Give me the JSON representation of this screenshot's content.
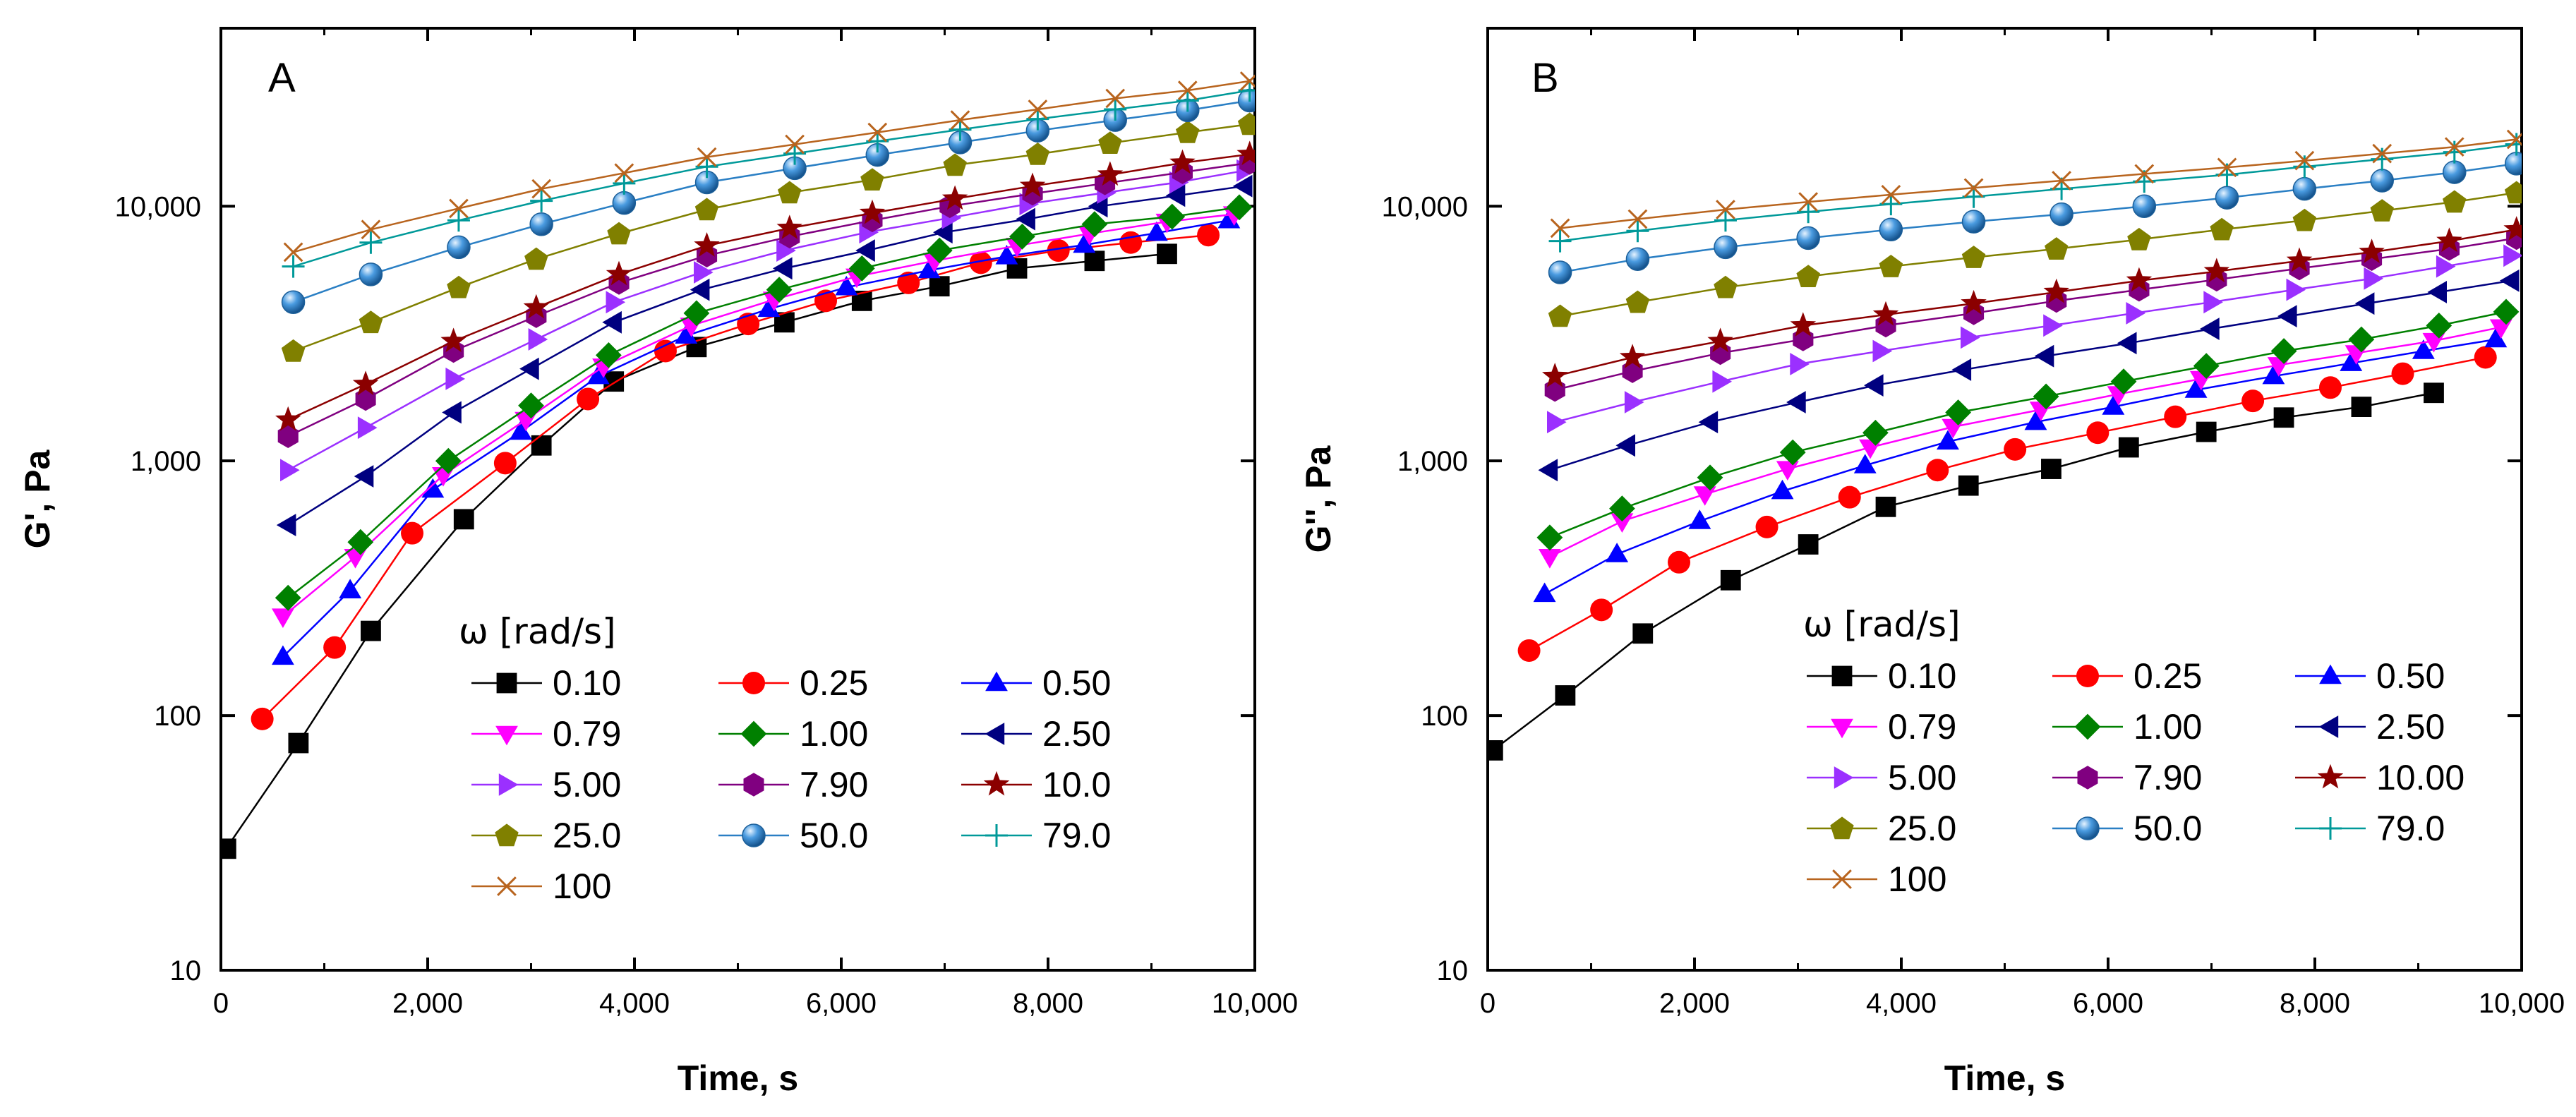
{
  "chart_data": [
    {
      "type": "line",
      "panel_label": "A",
      "xlabel": "Time, s",
      "ylabel": "G', Pa",
      "yscale": "log",
      "xlim": [
        0,
        10000
      ],
      "ylim": [
        10,
        50000
      ],
      "x_ticks": [
        0,
        2000,
        4000,
        6000,
        8000,
        10000
      ],
      "x_tick_labels": [
        "0",
        "2,000",
        "4,000",
        "6,000",
        "8,000",
        "10,000"
      ],
      "y_ticks": [
        10,
        100,
        1000,
        10000
      ],
      "y_tick_labels": [
        "10",
        "100",
        "1,000",
        "10,000"
      ],
      "legend_title": "ω [rad/s]",
      "legend_placement": "center-right",
      "grid": false,
      "series": [
        {
          "name": "0.10",
          "color": "#000000",
          "marker": "square",
          "x": [
            50,
            750,
            1450,
            2350,
            3100,
            3800,
            4600,
            5450,
            6200,
            6950,
            7700,
            8450,
            9150
          ],
          "values": [
            30,
            78,
            215,
            590,
            1150,
            2050,
            2800,
            3500,
            4250,
            4850,
            5700,
            6100,
            6500
          ]
        },
        {
          "name": "0.25",
          "color": "#ff0000",
          "marker": "circle",
          "x": [
            400,
            1100,
            1850,
            2750,
            3550,
            4300,
            5100,
            5850,
            6650,
            7350,
            8100,
            8800,
            9550
          ],
          "values": [
            97,
            185,
            520,
            980,
            1750,
            2700,
            3450,
            4250,
            5000,
            6000,
            6700,
            7200,
            7700
          ]
        },
        {
          "name": "0.50",
          "color": "#0000ff",
          "marker": "triangle-up",
          "x": [
            600,
            1250,
            2050,
            2900,
            3650,
            4500,
            5300,
            6050,
            6850,
            7600,
            8350,
            9050,
            9750
          ],
          "values": [
            170,
            310,
            770,
            1300,
            2150,
            3100,
            3950,
            4800,
            5600,
            6350,
            7050,
            7850,
            8800
          ]
        },
        {
          "name": "0.79",
          "color": "#ff00ff",
          "marker": "triangle-down",
          "x": [
            600,
            1300,
            2150,
            2950,
            3700,
            4550,
            5350,
            6150,
            6900,
            7700,
            8400,
            9150,
            9800
          ],
          "values": [
            245,
            420,
            880,
            1450,
            2350,
            3400,
            4300,
            5300,
            6100,
            7000,
            7800,
            8700,
            9300
          ]
        },
        {
          "name": "1.00",
          "color": "#008000",
          "marker": "diamond",
          "x": [
            650,
            1350,
            2200,
            3000,
            3750,
            4600,
            5400,
            6200,
            6950,
            7750,
            8450,
            9200,
            9850
          ],
          "values": [
            290,
            480,
            1000,
            1650,
            2600,
            3800,
            4700,
            5700,
            6700,
            7600,
            8500,
            9100,
            9900
          ]
        },
        {
          "name": "2.50",
          "color": "#000080",
          "marker": "triangle-left",
          "x": [
            650,
            1400,
            2250,
            3000,
            3800,
            4650,
            5450,
            6250,
            7000,
            7800,
            8500,
            9250,
            9900
          ],
          "values": [
            560,
            870,
            1550,
            2300,
            3500,
            4700,
            5700,
            6700,
            7900,
            8900,
            10000,
            11000,
            12000
          ]
        },
        {
          "name": "5.00",
          "color": "#9b30ff",
          "marker": "triangle-right",
          "x": [
            650,
            1400,
            2250,
            3050,
            3800,
            4650,
            5450,
            6250,
            7050,
            7800,
            8550,
            9250,
            9900
          ],
          "values": [
            920,
            1350,
            2100,
            3000,
            4200,
            5500,
            6700,
            7900,
            9000,
            10200,
            11300,
            12400,
            13800
          ]
        },
        {
          "name": "7.90",
          "color": "#800080",
          "marker": "hexagon",
          "x": [
            650,
            1400,
            2250,
            3050,
            3850,
            4700,
            5500,
            6300,
            7050,
            7850,
            8550,
            9300,
            9950
          ],
          "values": [
            1250,
            1750,
            2700,
            3700,
            5000,
            6400,
            7600,
            8800,
            10000,
            11200,
            12300,
            13600,
            14800
          ]
        },
        {
          "name": "10.0",
          "color": "#8b0000",
          "marker": "star",
          "x": [
            650,
            1400,
            2250,
            3050,
            3850,
            4700,
            5500,
            6300,
            7100,
            7850,
            8600,
            9300,
            9950
          ],
          "values": [
            1450,
            2000,
            2950,
            4000,
            5400,
            7000,
            8200,
            9400,
            10700,
            12000,
            13300,
            14800,
            16000
          ]
        },
        {
          "name": "25.0",
          "color": "#808000",
          "marker": "pentagon",
          "x": [
            700,
            1450,
            2300,
            3050,
            3850,
            4700,
            5500,
            6300,
            7100,
            7900,
            8600,
            9350,
            9950
          ],
          "values": [
            2700,
            3500,
            4800,
            6200,
            7800,
            9700,
            11300,
            12700,
            14500,
            16000,
            17700,
            19500,
            21000
          ]
        },
        {
          "name": "50.0",
          "color": "#2a7fc4",
          "marker": "sphere",
          "x": [
            700,
            1450,
            2300,
            3100,
            3900,
            4700,
            5550,
            6350,
            7150,
            7900,
            8650,
            9350,
            9950
          ],
          "values": [
            4200,
            5400,
            6900,
            8500,
            10300,
            12400,
            14100,
            15900,
            17800,
            19800,
            21800,
            23800,
            26000
          ]
        },
        {
          "name": "79.0",
          "color": "#009999",
          "marker": "plus",
          "x": [
            700,
            1450,
            2300,
            3100,
            3900,
            4700,
            5550,
            6350,
            7150,
            7900,
            8650,
            9350,
            9950
          ],
          "values": [
            5800,
            7200,
            8800,
            10500,
            12300,
            14300,
            16100,
            18000,
            20000,
            22000,
            24000,
            26000,
            28500
          ]
        },
        {
          "name": "100",
          "color": "#b8641e",
          "marker": "cross",
          "x": [
            700,
            1450,
            2300,
            3100,
            3900,
            4700,
            5550,
            6350,
            7150,
            7900,
            8650,
            9350,
            9950
          ],
          "values": [
            6600,
            8100,
            9800,
            11700,
            13500,
            15600,
            17500,
            19500,
            21800,
            24000,
            26500,
            28500,
            31000
          ]
        }
      ]
    },
    {
      "type": "line",
      "panel_label": "B",
      "xlabel": "Time, s",
      "ylabel": "G'', Pa",
      "yscale": "log",
      "xlim": [
        0,
        10000
      ],
      "ylim": [
        10,
        50000
      ],
      "x_ticks": [
        0,
        2000,
        4000,
        6000,
        8000,
        10000
      ],
      "x_tick_labels": [
        "0",
        "2,000",
        "4,000",
        "6,000",
        "8,000",
        "10,000"
      ],
      "y_ticks": [
        10,
        100,
        1000,
        10000
      ],
      "y_tick_labels": [
        "10",
        "100",
        "1,000",
        "10,000"
      ],
      "legend_title": "ω [rad/s]",
      "legend_placement": "center-right",
      "grid": false,
      "series": [
        {
          "name": "0.10",
          "color": "#000000",
          "marker": "square",
          "x": [
            50,
            750,
            1500,
            2350,
            3100,
            3850,
            4650,
            5450,
            6200,
            6950,
            7700,
            8450,
            9150
          ],
          "values": [
            73,
            120,
            210,
            340,
            470,
            660,
            800,
            930,
            1130,
            1300,
            1480,
            1630,
            1850
          ]
        },
        {
          "name": "0.25",
          "color": "#ff0000",
          "marker": "circle",
          "x": [
            400,
            1100,
            1850,
            2700,
            3500,
            4350,
            5100,
            5900,
            6650,
            7400,
            8150,
            8850,
            9650
          ],
          "values": [
            180,
            260,
            400,
            550,
            720,
            920,
            1110,
            1290,
            1490,
            1720,
            1940,
            2200,
            2550
          ]
        },
        {
          "name": "0.50",
          "color": "#0000ff",
          "marker": "triangle-up",
          "x": [
            550,
            1250,
            2050,
            2850,
            3650,
            4450,
            5300,
            6050,
            6850,
            7600,
            8350,
            9050,
            9750
          ],
          "values": [
            300,
            430,
            580,
            760,
            960,
            1190,
            1420,
            1630,
            1900,
            2150,
            2420,
            2700,
            3000
          ]
        },
        {
          "name": "0.79",
          "color": "#ff00ff",
          "marker": "triangle-down",
          "x": [
            600,
            1300,
            2100,
            2900,
            3700,
            4500,
            5350,
            6100,
            6900,
            7650,
            8400,
            9150,
            9800
          ],
          "values": [
            420,
            580,
            740,
            930,
            1130,
            1360,
            1590,
            1830,
            2100,
            2380,
            2650,
            2960,
            3350
          ]
        },
        {
          "name": "1.00",
          "color": "#008000",
          "marker": "diamond",
          "x": [
            600,
            1300,
            2150,
            2950,
            3750,
            4550,
            5400,
            6150,
            6950,
            7700,
            8450,
            9200,
            9850
          ],
          "values": [
            500,
            650,
            860,
            1080,
            1290,
            1550,
            1790,
            2050,
            2360,
            2700,
            3000,
            3400,
            3850
          ]
        },
        {
          "name": "2.50",
          "color": "#000080",
          "marker": "triangle-left",
          "x": [
            600,
            1350,
            2150,
            3000,
            3750,
            4600,
            5400,
            6200,
            7000,
            7750,
            8500,
            9200,
            9900
          ],
          "values": [
            920,
            1150,
            1420,
            1700,
            1980,
            2280,
            2580,
            2900,
            3300,
            3700,
            4150,
            4600,
            5100
          ]
        },
        {
          "name": "5.00",
          "color": "#9b30ff",
          "marker": "triangle-right",
          "x": [
            650,
            1400,
            2250,
            3000,
            3800,
            4650,
            5450,
            6250,
            7000,
            7800,
            8550,
            9250,
            9900
          ],
          "values": [
            1420,
            1700,
            2050,
            2400,
            2700,
            3050,
            3400,
            3800,
            4200,
            4700,
            5200,
            5800,
            6400
          ]
        },
        {
          "name": "7.90",
          "color": "#800080",
          "marker": "hexagon",
          "x": [
            650,
            1400,
            2250,
            3050,
            3850,
            4700,
            5500,
            6300,
            7050,
            7850,
            8550,
            9300,
            9950
          ],
          "values": [
            1900,
            2250,
            2650,
            3000,
            3400,
            3800,
            4250,
            4700,
            5150,
            5700,
            6200,
            6800,
            7500
          ]
        },
        {
          "name": "10.00",
          "color": "#8b0000",
          "marker": "star",
          "x": [
            650,
            1400,
            2250,
            3050,
            3850,
            4700,
            5500,
            6300,
            7050,
            7850,
            8550,
            9300,
            9950
          ],
          "values": [
            2150,
            2550,
            2950,
            3400,
            3750,
            4150,
            4600,
            5100,
            5550,
            6100,
            6600,
            7300,
            8100
          ]
        },
        {
          "name": "25.0",
          "color": "#808000",
          "marker": "pentagon",
          "x": [
            700,
            1450,
            2300,
            3100,
            3900,
            4700,
            5500,
            6300,
            7100,
            7900,
            8650,
            9350,
            9950
          ],
          "values": [
            3700,
            4200,
            4800,
            5300,
            5800,
            6300,
            6800,
            7400,
            8100,
            8800,
            9600,
            10400,
            11300
          ]
        },
        {
          "name": "50.0",
          "color": "#2a7fc4",
          "marker": "sphere",
          "x": [
            700,
            1450,
            2300,
            3100,
            3900,
            4700,
            5550,
            6350,
            7150,
            7900,
            8650,
            9350,
            9950
          ],
          "values": [
            5500,
            6200,
            6900,
            7500,
            8100,
            8700,
            9300,
            10000,
            10800,
            11700,
            12600,
            13600,
            14700
          ]
        },
        {
          "name": "79.0",
          "color": "#009999",
          "marker": "plus",
          "x": [
            700,
            1450,
            2300,
            3100,
            3900,
            4700,
            5550,
            6350,
            7150,
            7900,
            8650,
            9350,
            9950
          ],
          "values": [
            7300,
            8000,
            8800,
            9500,
            10200,
            10900,
            11700,
            12500,
            13300,
            14300,
            15300,
            16300,
            17500
          ]
        },
        {
          "name": "100",
          "color": "#b8641e",
          "marker": "cross",
          "x": [
            700,
            1450,
            2300,
            3100,
            3900,
            4700,
            5550,
            6350,
            7150,
            7900,
            8650,
            9350,
            9950
          ],
          "values": [
            8200,
            8900,
            9700,
            10400,
            11100,
            11800,
            12600,
            13400,
            14200,
            15100,
            16100,
            17100,
            18300
          ]
        }
      ]
    }
  ]
}
